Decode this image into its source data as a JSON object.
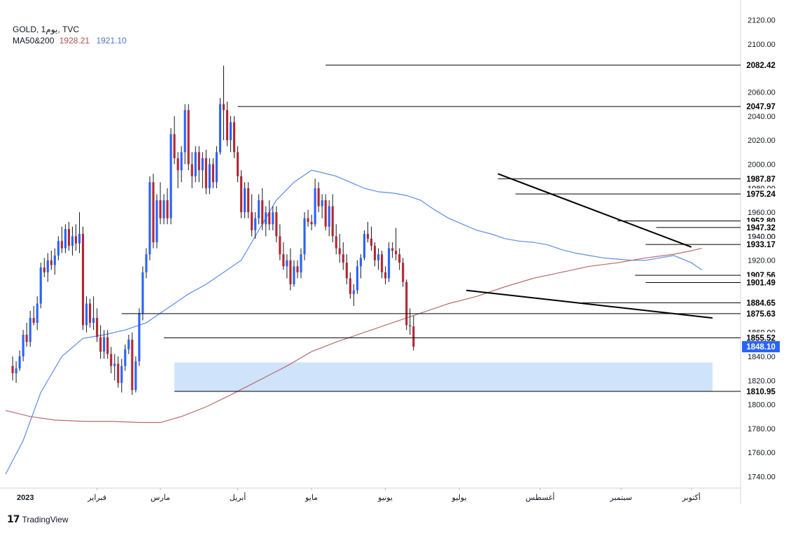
{
  "header": {
    "symbol_line": "GOLD, 1يوم, TVC",
    "ma_label": "MA50&200",
    "ma50_value": "1928.21",
    "ma200_value": "1921.10"
  },
  "branding": {
    "logo": "𝟭𝟳",
    "name": "TradingView"
  },
  "colors": {
    "up": "#2962ff",
    "down": "#b22833",
    "wick": "#131722",
    "ma50": "#5b8ee6",
    "ma200": "#b96b6b",
    "zone": "#cfe3fb",
    "level_line": "#000000",
    "price_tag": "#2962ff"
  },
  "chart_data": {
    "type": "candlestick",
    "title": "GOLD, 1يوم, TVC",
    "y_axis": {
      "ylim": [
        1731,
        2125
      ],
      "ticks": [
        "2120.00",
        "2100.00",
        "2080.00",
        "2060.00",
        "2040.00",
        "2020.00",
        "2000.00",
        "1980.00",
        "1960.00",
        "1940.00",
        "1920.00",
        "1900.00",
        "1880.00",
        "1860.00",
        "1840.00",
        "1820.00",
        "1800.00",
        "1780.00",
        "1760.00",
        "1740.00"
      ]
    },
    "x_axis": {
      "labels": [
        {
          "text": "2023",
          "x": 0
        },
        {
          "text": "فبراير",
          "x": 24
        },
        {
          "text": "مارس",
          "x": 42
        },
        {
          "text": "أبريل",
          "x": 64
        },
        {
          "text": "مايو",
          "x": 85
        },
        {
          "text": "يونيو",
          "x": 106
        },
        {
          "text": "يوليو",
          "x": 127
        },
        {
          "text": "أغسطس",
          "x": 150
        },
        {
          "text": "سبتمبر",
          "x": 173
        },
        {
          "text": "أكتوبر",
          "x": 193
        }
      ]
    },
    "x_range": [
      -2,
      207
    ],
    "candles": [
      [
        1832,
        1840,
        1820,
        1826
      ],
      [
        1826,
        1836,
        1818,
        1830
      ],
      [
        1830,
        1845,
        1828,
        1840
      ],
      [
        1840,
        1862,
        1836,
        1858
      ],
      [
        1858,
        1868,
        1848,
        1852
      ],
      [
        1852,
        1878,
        1848,
        1872
      ],
      [
        1872,
        1882,
        1866,
        1868
      ],
      [
        1868,
        1890,
        1862,
        1884
      ],
      [
        1884,
        1918,
        1880,
        1914
      ],
      [
        1914,
        1922,
        1906,
        1910
      ],
      [
        1910,
        1926,
        1902,
        1920
      ],
      [
        1920,
        1928,
        1912,
        1916
      ],
      [
        1916,
        1930,
        1908,
        1924
      ],
      [
        1924,
        1940,
        1920,
        1936
      ],
      [
        1936,
        1948,
        1926,
        1930
      ],
      [
        1930,
        1950,
        1926,
        1946
      ],
      [
        1946,
        1952,
        1928,
        1932
      ],
      [
        1932,
        1948,
        1924,
        1940
      ],
      [
        1940,
        1950,
        1928,
        1934
      ],
      [
        1934,
        1960,
        1926,
        1942
      ],
      [
        1942,
        1948,
        1862,
        1866
      ],
      [
        1866,
        1890,
        1860,
        1884
      ],
      [
        1884,
        1888,
        1864,
        1868
      ],
      [
        1868,
        1890,
        1862,
        1872
      ],
      [
        1872,
        1880,
        1852,
        1856
      ],
      [
        1856,
        1866,
        1838,
        1844
      ],
      [
        1844,
        1862,
        1838,
        1856
      ],
      [
        1856,
        1862,
        1838,
        1842
      ],
      [
        1842,
        1848,
        1826,
        1832
      ],
      [
        1832,
        1842,
        1820,
        1834
      ],
      [
        1834,
        1840,
        1814,
        1818
      ],
      [
        1818,
        1838,
        1810,
        1832
      ],
      [
        1832,
        1850,
        1828,
        1846
      ],
      [
        1846,
        1858,
        1842,
        1854
      ],
      [
        1854,
        1860,
        1808,
        1812
      ],
      [
        1812,
        1840,
        1810,
        1836
      ],
      [
        1836,
        1880,
        1832,
        1876
      ],
      [
        1876,
        1915,
        1870,
        1910
      ],
      [
        1910,
        1930,
        1905,
        1925
      ],
      [
        1925,
        1990,
        1920,
        1985
      ],
      [
        1985,
        1992,
        1930,
        1935
      ],
      [
        1935,
        1975,
        1930,
        1970
      ],
      [
        1970,
        1985,
        1950,
        1955
      ],
      [
        1955,
        1975,
        1950,
        1970
      ],
      [
        1970,
        1980,
        1950,
        1955
      ],
      [
        1955,
        2030,
        1950,
        2025
      ],
      [
        2025,
        2040,
        2000,
        2005
      ],
      [
        2005,
        2010,
        1980,
        1995
      ],
      [
        1995,
        2015,
        1985,
        2010
      ],
      [
        2010,
        2050,
        2000,
        2045
      ],
      [
        2045,
        2050,
        1995,
        2000
      ],
      [
        2000,
        2010,
        1980,
        1990
      ],
      [
        1990,
        2015,
        1985,
        2010
      ],
      [
        2010,
        2015,
        1985,
        1995
      ],
      [
        1995,
        2010,
        1980,
        2005
      ],
      [
        2005,
        2012,
        1975,
        1980
      ],
      [
        1980,
        2005,
        1975,
        2000
      ],
      [
        2000,
        2005,
        1980,
        1985
      ],
      [
        1985,
        2015,
        1980,
        2010
      ],
      [
        2010,
        2055,
        2008,
        2050
      ],
      [
        2050,
        2082,
        2020,
        2045
      ],
      [
        2045,
        2052,
        2015,
        2020
      ],
      [
        2020,
        2040,
        2010,
        2035
      ],
      [
        2035,
        2040,
        2005,
        2010
      ],
      [
        2010,
        2015,
        1985,
        1990
      ],
      [
        1990,
        1995,
        1955,
        1960
      ],
      [
        1960,
        1985,
        1955,
        1980
      ],
      [
        1980,
        1985,
        1955,
        1960
      ],
      [
        1960,
        1975,
        1940,
        1945
      ],
      [
        1945,
        1960,
        1938,
        1955
      ],
      [
        1955,
        1975,
        1950,
        1970
      ],
      [
        1970,
        1980,
        1945,
        1950
      ],
      [
        1950,
        1965,
        1940,
        1960
      ],
      [
        1960,
        1970,
        1945,
        1950
      ],
      [
        1950,
        1965,
        1945,
        1960
      ],
      [
        1960,
        1965,
        1935,
        1940
      ],
      [
        1940,
        1950,
        1920,
        1925
      ],
      [
        1925,
        1935,
        1912,
        1915
      ],
      [
        1915,
        1925,
        1905,
        1920
      ],
      [
        1920,
        1930,
        1895,
        1900
      ],
      [
        1900,
        1920,
        1898,
        1915
      ],
      [
        1915,
        1920,
        1905,
        1910
      ],
      [
        1910,
        1930,
        1905,
        1925
      ],
      [
        1925,
        1960,
        1920,
        1955
      ],
      [
        1955,
        1962,
        1948,
        1952
      ],
      [
        1952,
        1958,
        1945,
        1950
      ],
      [
        1950,
        1988,
        1948,
        1980
      ],
      [
        1980,
        1985,
        1960,
        1965
      ],
      [
        1965,
        1975,
        1955,
        1970
      ],
      [
        1970,
        1975,
        1945,
        1948
      ],
      [
        1948,
        1970,
        1940,
        1965
      ],
      [
        1965,
        1975,
        1935,
        1940
      ],
      [
        1940,
        1950,
        1925,
        1930
      ],
      [
        1930,
        1942,
        1918,
        1925
      ],
      [
        1925,
        1935,
        1912,
        1918
      ],
      [
        1918,
        1925,
        1900,
        1905
      ],
      [
        1905,
        1910,
        1888,
        1892
      ],
      [
        1892,
        1900,
        1882,
        1895
      ],
      [
        1895,
        1920,
        1892,
        1915
      ],
      [
        1915,
        1925,
        1905,
        1922
      ],
      [
        1922,
        1945,
        1920,
        1942
      ],
      [
        1942,
        1952,
        1935,
        1938
      ],
      [
        1938,
        1948,
        1928,
        1932
      ],
      [
        1932,
        1935,
        1915,
        1920
      ],
      [
        1920,
        1930,
        1912,
        1925
      ],
      [
        1925,
        1928,
        1905,
        1910
      ],
      [
        1910,
        1915,
        1900,
        1905
      ],
      [
        1905,
        1935,
        1902,
        1930
      ],
      [
        1930,
        1935,
        1922,
        1928
      ],
      [
        1928,
        1947,
        1920,
        1925
      ],
      [
        1925,
        1930,
        1912,
        1918
      ],
      [
        1918,
        1922,
        1898,
        1902
      ],
      [
        1902,
        1904,
        1862,
        1866
      ],
      [
        1866,
        1880,
        1858,
        1865
      ],
      [
        1865,
        1874,
        1845,
        1848
      ]
    ],
    "moving_averages": [
      {
        "name": "MA50",
        "value_label": "1928.21",
        "points": [
          [
            -2,
            1742
          ],
          [
            3,
            1770
          ],
          [
            8,
            1810
          ],
          [
            14,
            1840
          ],
          [
            20,
            1855
          ],
          [
            26,
            1858
          ],
          [
            32,
            1862
          ],
          [
            38,
            1868
          ],
          [
            44,
            1880
          ],
          [
            50,
            1892
          ],
          [
            55,
            1900
          ],
          [
            60,
            1910
          ],
          [
            65,
            1920
          ],
          [
            70,
            1945
          ],
          [
            75,
            1970
          ],
          [
            80,
            1985
          ],
          [
            85,
            1995
          ],
          [
            88,
            1993
          ],
          [
            92,
            1990
          ],
          [
            96,
            1985
          ],
          [
            100,
            1980
          ],
          [
            104,
            1977
          ],
          [
            108,
            1976
          ],
          [
            112,
            1974
          ],
          [
            116,
            1970
          ],
          [
            120,
            1962
          ],
          [
            124,
            1955
          ],
          [
            128,
            1950
          ],
          [
            132,
            1945
          ],
          [
            136,
            1942
          ],
          [
            140,
            1938
          ],
          [
            144,
            1936
          ],
          [
            148,
            1935
          ],
          [
            152,
            1933
          ],
          [
            156,
            1929
          ],
          [
            160,
            1926
          ],
          [
            164,
            1924
          ],
          [
            168,
            1922
          ],
          [
            172,
            1921
          ],
          [
            176,
            1920
          ],
          [
            180,
            1920
          ],
          [
            184,
            1922
          ],
          [
            188,
            1924
          ],
          [
            193,
            1918
          ],
          [
            196,
            1912
          ]
        ]
      },
      {
        "name": "MA200",
        "value_label": "1921.10",
        "points": [
          [
            -2,
            1795
          ],
          [
            5,
            1790
          ],
          [
            12,
            1787
          ],
          [
            20,
            1786
          ],
          [
            28,
            1786
          ],
          [
            36,
            1785
          ],
          [
            42,
            1785
          ],
          [
            48,
            1790
          ],
          [
            55,
            1798
          ],
          [
            62,
            1808
          ],
          [
            70,
            1820
          ],
          [
            78,
            1832
          ],
          [
            85,
            1844
          ],
          [
            92,
            1852
          ],
          [
            100,
            1860
          ],
          [
            108,
            1868
          ],
          [
            116,
            1876
          ],
          [
            124,
            1884
          ],
          [
            132,
            1890
          ],
          [
            140,
            1898
          ],
          [
            148,
            1905
          ],
          [
            156,
            1910
          ],
          [
            164,
            1915
          ],
          [
            172,
            1918
          ],
          [
            180,
            1922
          ],
          [
            188,
            1925
          ],
          [
            193,
            1928
          ],
          [
            196,
            1930
          ]
        ]
      }
    ],
    "levels": [
      {
        "label": "2082.42",
        "value": 2082.42,
        "x_start": 89
      },
      {
        "label": "2047.97",
        "value": 2047.97,
        "x_start": 64
      },
      {
        "label": "1987.87",
        "value": 1987.87,
        "x_start": 138
      },
      {
        "label": "1975.24",
        "value": 1975.24,
        "x_start": 143
      },
      {
        "label": "1952.80",
        "value": 1952.8,
        "x_start": 172
      },
      {
        "label": "1947.32",
        "value": 1947.32,
        "x_start": 183
      },
      {
        "label": "1933.17",
        "value": 1933.17,
        "x_start": 180
      },
      {
        "label": "1907.56",
        "value": 1907.56,
        "x_start": 177
      },
      {
        "label": "1901.49",
        "value": 1901.49,
        "x_start": 180
      },
      {
        "label": "1884.65",
        "value": 1884.65,
        "x_start": 162
      },
      {
        "label": "1875.63",
        "value": 1875.63,
        "x_start": 31
      },
      {
        "label": "1855.52",
        "value": 1855.52,
        "x_start": 43
      },
      {
        "label": "1810.95",
        "value": 1810.95,
        "x_start": 46
      }
    ],
    "current_price": {
      "label": "1848.10",
      "value": 1848.1
    },
    "trendlines": [
      {
        "from": [
          138,
          1992
        ],
        "to": [
          193,
          1931
        ]
      },
      {
        "from": [
          129,
          1895
        ],
        "to": [
          199,
          1872
        ]
      }
    ],
    "zone": {
      "x_start": 46,
      "x_end": 199,
      "y_low": 1811,
      "y_high": 1835
    },
    "obscured_axis_labels": [
      "1980.00",
      "1940.00",
      "1900.00",
      "1860.00"
    ]
  }
}
